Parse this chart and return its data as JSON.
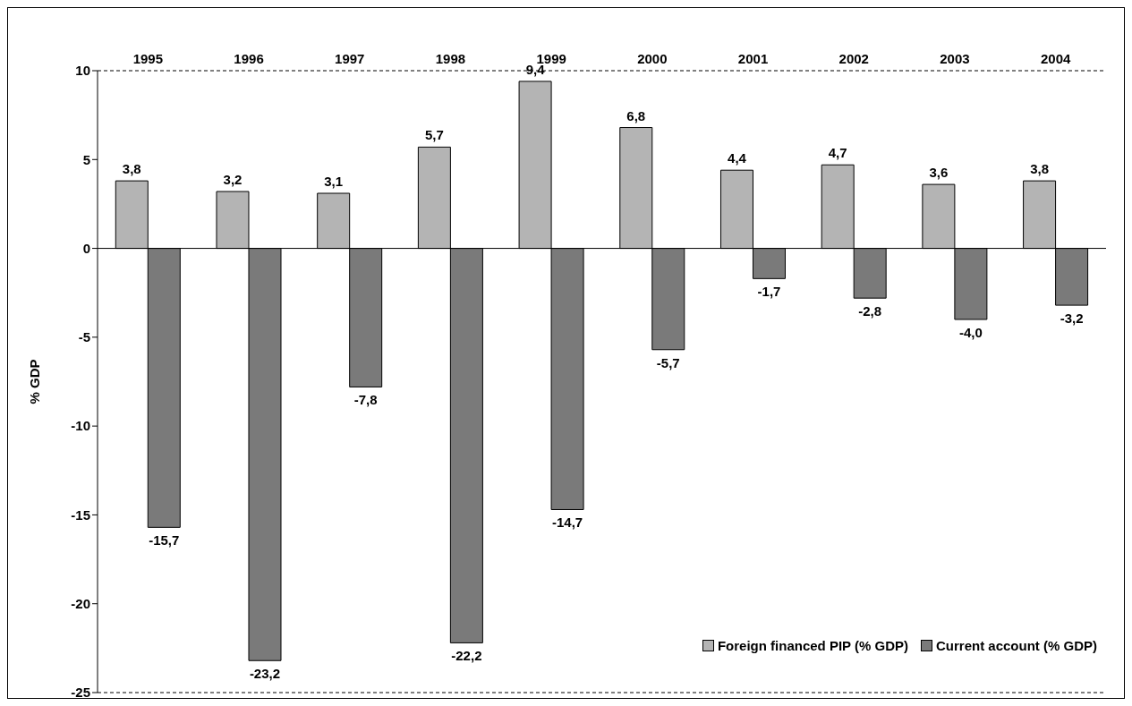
{
  "chart_data": {
    "type": "bar",
    "ylabel": "% GDP",
    "categories": [
      "1995",
      "1996",
      "1997",
      "1998",
      "1999",
      "2000",
      "2001",
      "2002",
      "2003",
      "2004"
    ],
    "series": [
      {
        "name": "Foreign financed PIP (% GDP)",
        "color": "#b4b4b4",
        "values": [
          3.8,
          3.2,
          3.1,
          5.7,
          9.4,
          6.8,
          4.4,
          4.7,
          3.6,
          3.8
        ],
        "value_labels": [
          "3,8",
          "3,2",
          "3,1",
          "5,7",
          "9,4",
          "6,8",
          "4,4",
          "4,7",
          "3,6",
          "3,8"
        ]
      },
      {
        "name": "Current account (% GDP)",
        "color": "#7a7a7a",
        "values": [
          -15.7,
          -23.2,
          -7.8,
          -22.2,
          -14.7,
          -5.7,
          -1.7,
          -2.8,
          -4.0,
          -3.2
        ],
        "value_labels": [
          "-15,7",
          "-23,2",
          "-7,8",
          "-22,2",
          "-14,7",
          "-5,7",
          "-1,7",
          "-2,8",
          "-4,0",
          "-3,2"
        ]
      }
    ],
    "ylim": [
      -25,
      10
    ],
    "yticks": [
      -25,
      -20,
      -15,
      -10,
      -5,
      0,
      5,
      10
    ],
    "grid": "y",
    "legend": "bottom right"
  }
}
